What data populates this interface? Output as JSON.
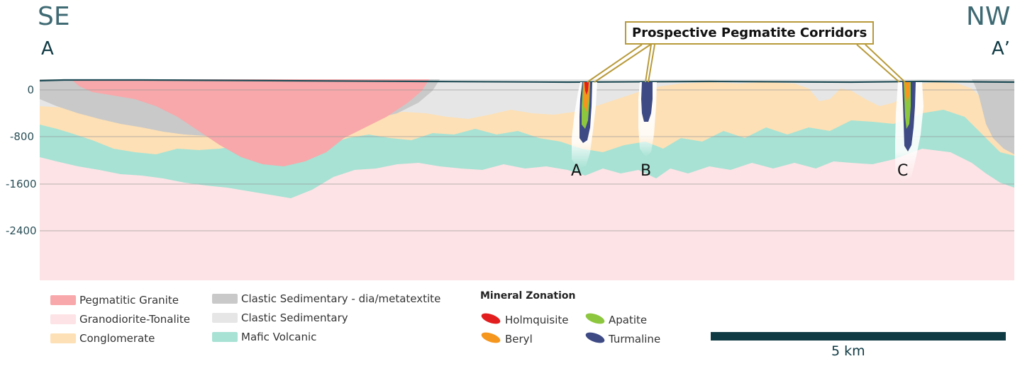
{
  "directions": {
    "left": "SE",
    "right": "NW"
  },
  "section_labels": {
    "start": "A",
    "end": "A’"
  },
  "depth_ticks": [
    "0",
    "-800",
    "-1600",
    "-2400"
  ],
  "callout": {
    "title": "Prospective Pegmatite Corridors"
  },
  "pegmatites": [
    "A",
    "B",
    "C"
  ],
  "legend": {
    "units": [
      {
        "label": "Pegmatitic Granite",
        "color": "#f8a8aa"
      },
      {
        "label": "Granodiorite-Tonalite",
        "color": "#fde3e5"
      },
      {
        "label": "Conglomerate",
        "color": "#fde0b5"
      },
      {
        "label": "Clastic Sedimentary - dia/metatextite",
        "color": "#c9c9c9"
      },
      {
        "label": "Clastic Sedimentary",
        "color": "#e6e6e6"
      },
      {
        "label": "Mafic Volcanic",
        "color": "#a7e2d4"
      }
    ],
    "zonation_title": "Mineral Zonation",
    "zonation": [
      {
        "label": "Holmquisite",
        "color": "#e31e1e"
      },
      {
        "label": "Apatite",
        "color": "#8dc63f"
      },
      {
        "label": "Beryl",
        "color": "#f5961e"
      },
      {
        "label": "Turmaline",
        "color": "#3d4a84"
      }
    ]
  },
  "scale": {
    "label": "5 km"
  }
}
